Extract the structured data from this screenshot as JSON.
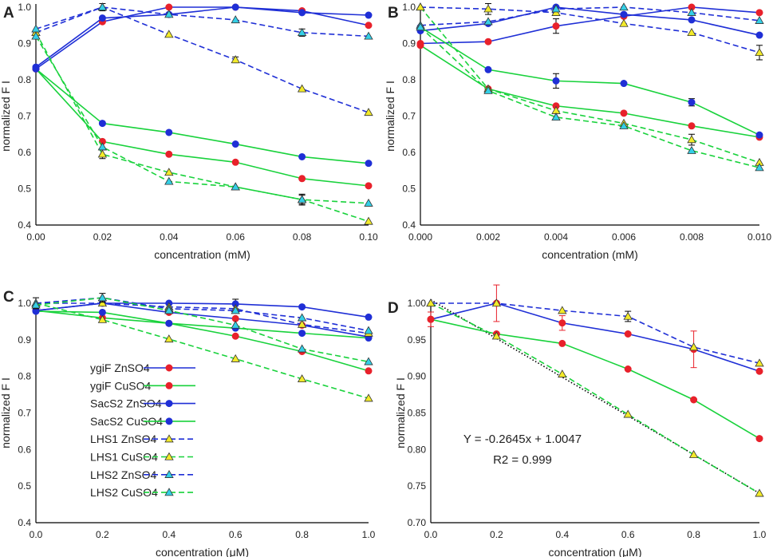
{
  "colors": {
    "red": "#e8212b",
    "blue": "#1f2fd6",
    "green": "#19d23c",
    "yellow": "#f2ea2a",
    "cyan": "#34cfe6"
  },
  "legend": [
    "ygiF ZnSO4",
    "ygiF CuSO4",
    "SacS2 ZnSO4",
    "SacS2 CuSO4",
    "LHS1 ZnSO4",
    "LHS1 CuSO4",
    "LHS2 ZnSO4",
    "LHS2 CuSO4"
  ],
  "chart_data": [
    {
      "panel": "A",
      "type": "line",
      "xlabel": "concentration (mM)",
      "ylabel": "normalized  F I",
      "xlim": [
        0,
        0.1
      ],
      "ylim": [
        0.4,
        1.0
      ],
      "xticks": [
        "0.00",
        "0.02",
        "0.04",
        "0.06",
        "0.08",
        "0.10"
      ],
      "yticks": [
        "0.4",
        "0.5",
        "0.6",
        "0.7",
        "0.8",
        "0.9",
        "1.0"
      ],
      "x": [
        0,
        0.02,
        0.04,
        0.06,
        0.08,
        0.1
      ],
      "series": [
        {
          "name": "ygiF ZnSO4",
          "values": [
            0.83,
            0.96,
            1.0,
            1.0,
            0.99,
            0.95
          ]
        },
        {
          "name": "ygiF CuSO4",
          "values": [
            0.83,
            0.63,
            0.595,
            0.573,
            0.528,
            0.508
          ]
        },
        {
          "name": "SacS2 ZnSO4",
          "values": [
            0.835,
            0.97,
            0.98,
            1.0,
            0.985,
            0.978
          ]
        },
        {
          "name": "SacS2 CuSO4",
          "values": [
            0.83,
            0.68,
            0.655,
            0.623,
            0.588,
            0.57
          ]
        },
        {
          "name": "LHS1 ZnSO4",
          "values": [
            0.93,
            1.0,
            0.925,
            0.855,
            0.775,
            0.71
          ]
        },
        {
          "name": "LHS1 CuSO4",
          "values": [
            0.93,
            0.595,
            0.545,
            0.505,
            0.47,
            0.41
          ]
        },
        {
          "name": "LHS2 ZnSO4",
          "values": [
            0.94,
            1.0,
            0.98,
            0.965,
            0.93,
            0.92
          ]
        },
        {
          "name": "LHS2 CuSO4",
          "values": [
            0.92,
            0.615,
            0.52,
            0.505,
            0.47,
            0.46
          ]
        }
      ]
    },
    {
      "panel": "B",
      "type": "line",
      "xlabel": "concentration (mM)",
      "ylabel": "normalized  F I",
      "xlim": [
        0,
        0.01
      ],
      "ylim": [
        0.4,
        1.0
      ],
      "xticks": [
        "0.000",
        "0.002",
        "0.004",
        "0.006",
        "0.008",
        "0.010"
      ],
      "yticks": [
        "0.4",
        "0.5",
        "0.6",
        "0.7",
        "0.8",
        "0.9",
        "1.0"
      ],
      "x": [
        0,
        0.002,
        0.004,
        0.006,
        0.008,
        0.01
      ],
      "series": [
        {
          "name": "ygiF ZnSO4",
          "values": [
            0.9,
            0.905,
            0.948,
            0.975,
            1.0,
            0.985
          ]
        },
        {
          "name": "ygiF CuSO4",
          "values": [
            0.895,
            0.775,
            0.728,
            0.708,
            0.673,
            0.642
          ]
        },
        {
          "name": "SacS2 ZnSO4",
          "values": [
            0.935,
            0.955,
            1.0,
            0.98,
            0.965,
            0.923
          ]
        },
        {
          "name": "SacS2 CuSO4",
          "values": [
            0.945,
            0.828,
            0.797,
            0.79,
            0.738,
            0.648
          ]
        },
        {
          "name": "LHS1 ZnSO4",
          "values": [
            1.0,
            0.995,
            0.985,
            0.955,
            0.93,
            0.875
          ]
        },
        {
          "name": "LHS1 CuSO4",
          "values": [
            1.0,
            0.775,
            0.715,
            0.68,
            0.635,
            0.572
          ]
        },
        {
          "name": "LHS2 ZnSO4",
          "values": [
            0.95,
            0.96,
            0.995,
            1.0,
            0.985,
            0.963
          ]
        },
        {
          "name": "LHS2 CuSO4",
          "values": [
            0.945,
            0.77,
            0.697,
            0.673,
            0.605,
            0.558
          ]
        }
      ]
    },
    {
      "panel": "C",
      "type": "line",
      "xlabel": "concentration (μM)",
      "ylabel": "normalized  F I",
      "xlim": [
        0,
        1
      ],
      "ylim": [
        0.4,
        1.0
      ],
      "xticks": [
        "0.0",
        "0.2",
        "0.4",
        "0.6",
        "0.8",
        "1.0"
      ],
      "yticks": [
        "0.4",
        "0.5",
        "0.6",
        "0.7",
        "0.8",
        "0.9",
        "1.0"
      ],
      "x": [
        0,
        0.2,
        0.4,
        0.6,
        0.8,
        1.0
      ],
      "series": [
        {
          "name": "ygiF ZnSO4",
          "values": [
            0.98,
            1.0,
            0.975,
            0.958,
            0.94,
            0.908
          ]
        },
        {
          "name": "ygiF CuSO4",
          "values": [
            0.98,
            0.96,
            0.945,
            0.91,
            0.868,
            0.815
          ]
        },
        {
          "name": "SacS2 ZnSO4",
          "values": [
            0.98,
            1.0,
            1.0,
            0.998,
            0.99,
            0.962
          ]
        },
        {
          "name": "SacS2 CuSO4",
          "values": [
            0.978,
            0.975,
            0.945,
            0.932,
            0.918,
            0.905
          ]
        },
        {
          "name": "LHS1 ZnSO4",
          "values": [
            1.0,
            1.0,
            0.99,
            0.985,
            0.942,
            0.918
          ]
        },
        {
          "name": "LHS1 CuSO4",
          "values": [
            1.0,
            0.955,
            0.902,
            0.848,
            0.793,
            0.74
          ]
        },
        {
          "name": "LHS2 ZnSO4",
          "values": [
            1.0,
            1.015,
            0.985,
            0.98,
            0.96,
            0.925
          ]
        },
        {
          "name": "LHS2 CuSO4",
          "values": [
            0.995,
            1.015,
            0.98,
            0.94,
            0.875,
            0.84
          ]
        }
      ]
    },
    {
      "panel": "D",
      "type": "line",
      "xlabel": "concentration (μM)",
      "ylabel": "normalized  F I",
      "xlim": [
        0,
        1
      ],
      "ylim": [
        0.7,
        1.0
      ],
      "xticks": [
        "0.0",
        "0.2",
        "0.4",
        "0.6",
        "0.8",
        "1.0"
      ],
      "yticks": [
        "0.70",
        "0.75",
        "0.80",
        "0.85",
        "0.90",
        "0.95",
        "1.00"
      ],
      "x": [
        0,
        0.2,
        0.4,
        0.6,
        0.8,
        1.0
      ],
      "series": [
        {
          "name": "ygiF ZnSO4",
          "values": [
            0.978,
            1.0,
            0.973,
            0.958,
            0.937,
            0.907
          ]
        },
        {
          "name": "ygiF CuSO4",
          "values": [
            0.978,
            0.958,
            0.945,
            0.91,
            0.868,
            0.815
          ]
        },
        {
          "name": "LHS1 ZnSO4",
          "values": [
            1.0,
            1.0,
            0.99,
            0.982,
            0.94,
            0.918
          ]
        },
        {
          "name": "LHS1 CuSO4",
          "values": [
            1.0,
            0.955,
            0.903,
            0.848,
            0.793,
            0.74
          ]
        }
      ],
      "fit": {
        "slope": -0.2645,
        "intercept": 1.0047
      },
      "annotations": [
        "Y = -0.2645x + 1.0047",
        "R2 = 0.999"
      ]
    }
  ]
}
